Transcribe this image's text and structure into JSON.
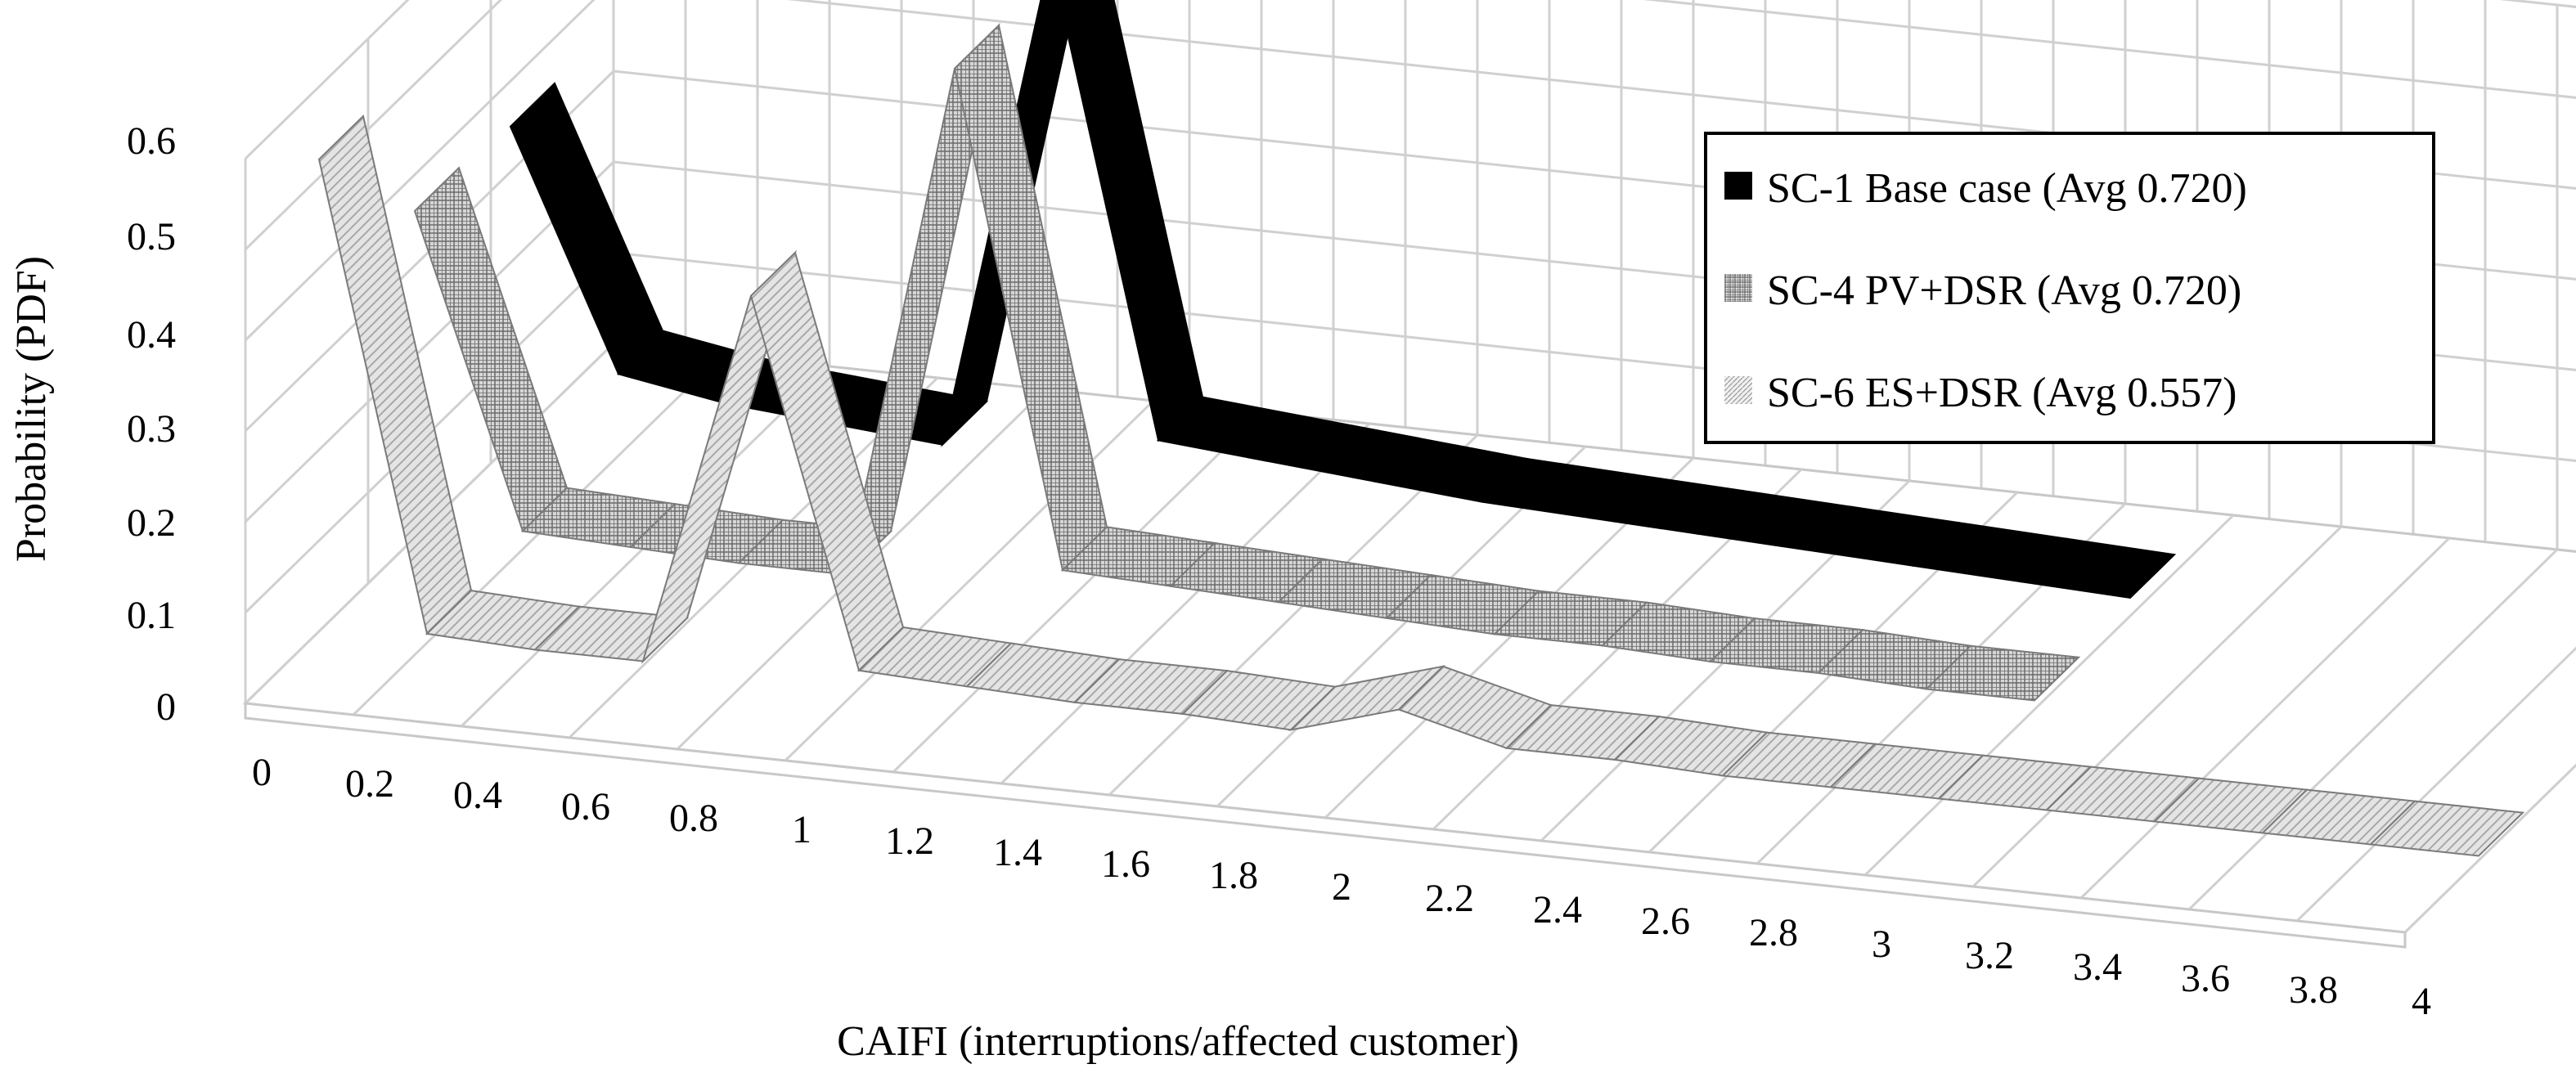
{
  "chart_data": {
    "type": "area",
    "title": "",
    "xlabel": "CAIFI (interruptions/affected  customer)",
    "ylabel": "Probability  (PDF)",
    "x_ticks": [
      "0",
      "0.2",
      "0.4",
      "0.6",
      "0.8",
      "1",
      "1.2",
      "1.4",
      "1.6",
      "1.8",
      "2",
      "2.2",
      "2.4",
      "2.6",
      "2.8",
      "3",
      "3.2",
      "3.4",
      "3.6",
      "3.8",
      "4"
    ],
    "y_ticks": [
      "0",
      "0.1",
      "0.2",
      "0.3",
      "0.4",
      "0.5",
      "0.6"
    ],
    "ylim": [
      0,
      0.6
    ],
    "grid": true,
    "legend_position": "top-right",
    "series": [
      {
        "name": "SC-1 Base case (Avg 0.720)",
        "color": "#000000",
        "pattern": "solid",
        "x": [
          0,
          0.2,
          0.4,
          0.6,
          0.8,
          1.0,
          1.2,
          1.4,
          1.6,
          1.8,
          2.0,
          2.2,
          2.4,
          2.6,
          2.8,
          3.0
        ],
        "y": [
          0.35,
          0.09,
          0.07,
          0.06,
          0.05,
          0.6,
          0.08,
          0.07,
          0.06,
          0.05,
          0.045,
          0.04,
          0.035,
          0.03,
          0.025,
          0.02
        ]
      },
      {
        "name": "SC-4 PV+DSR (Avg 0.720)",
        "color": "#8a8a8a",
        "pattern": "grid",
        "x": [
          0,
          0.2,
          0.4,
          0.6,
          0.8,
          1.0,
          1.2,
          1.4,
          1.6,
          1.8,
          2.0,
          2.2,
          2.4,
          2.6,
          2.8,
          3.0
        ],
        "y": [
          0.36,
          0.02,
          0.015,
          0.01,
          0.01,
          0.58,
          0.04,
          0.035,
          0.03,
          0.025,
          0.02,
          0.02,
          0.015,
          0.015,
          0.01,
          0.01
        ]
      },
      {
        "name": "SC-6 ES+DSR (Avg 0.557)",
        "color": "#b8b8b8",
        "pattern": "hatch",
        "x": [
          0,
          0.2,
          0.4,
          0.6,
          0.8,
          1.0,
          1.2,
          1.4,
          1.6,
          1.8,
          2.0,
          2.2,
          2.4,
          2.6,
          2.8,
          3.0,
          3.2,
          3.4,
          3.6,
          3.8,
          4.0
        ],
        "y": [
          0.52,
          0.01,
          0.005,
          0.005,
          0.42,
          0.02,
          0.015,
          0.01,
          0.01,
          0.005,
          0.04,
          0.01,
          0.01,
          0.005,
          0.005,
          0.005,
          0.005,
          0.005,
          0.005,
          0.005,
          0.005
        ]
      }
    ]
  }
}
